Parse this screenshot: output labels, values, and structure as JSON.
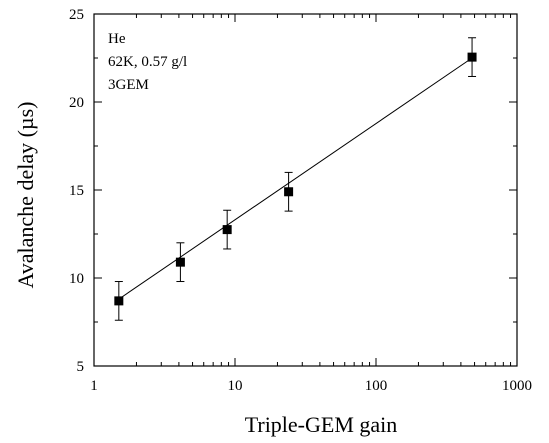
{
  "chart_data": {
    "type": "scatter",
    "xlabel": "Triple-GEM gain",
    "ylabel": "Avalanche delay (µs)",
    "xscale": "log",
    "xlim": [
      1,
      1000
    ],
    "ylim": [
      5,
      25
    ],
    "x_ticks": [
      1,
      10,
      100,
      1000
    ],
    "x_tick_labels": [
      "1",
      "10",
      "100",
      "1000"
    ],
    "y_ticks": [
      5,
      10,
      15,
      20,
      25
    ],
    "y_tick_labels": [
      "5",
      "10",
      "15",
      "20",
      "25"
    ],
    "grid": false,
    "annotations": [
      "He",
      "62K, 0.57 g/l",
      "3GEM"
    ],
    "series": [
      {
        "points": [
          {
            "x": 1.5,
            "y": 8.7,
            "yerr": 1.1
          },
          {
            "x": 4.1,
            "y": 10.9,
            "yerr": 1.1
          },
          {
            "x": 8.8,
            "y": 12.75,
            "yerr": 1.1
          },
          {
            "x": 24,
            "y": 14.9,
            "yerr": 1.1
          },
          {
            "x": 480,
            "y": 22.55,
            "yerr": 1.1
          }
        ],
        "fit": {
          "type": "linear-in-log-x",
          "x_range": [
            1.5,
            480
          ],
          "y_range": [
            8.8,
            22.5
          ]
        }
      }
    ]
  }
}
